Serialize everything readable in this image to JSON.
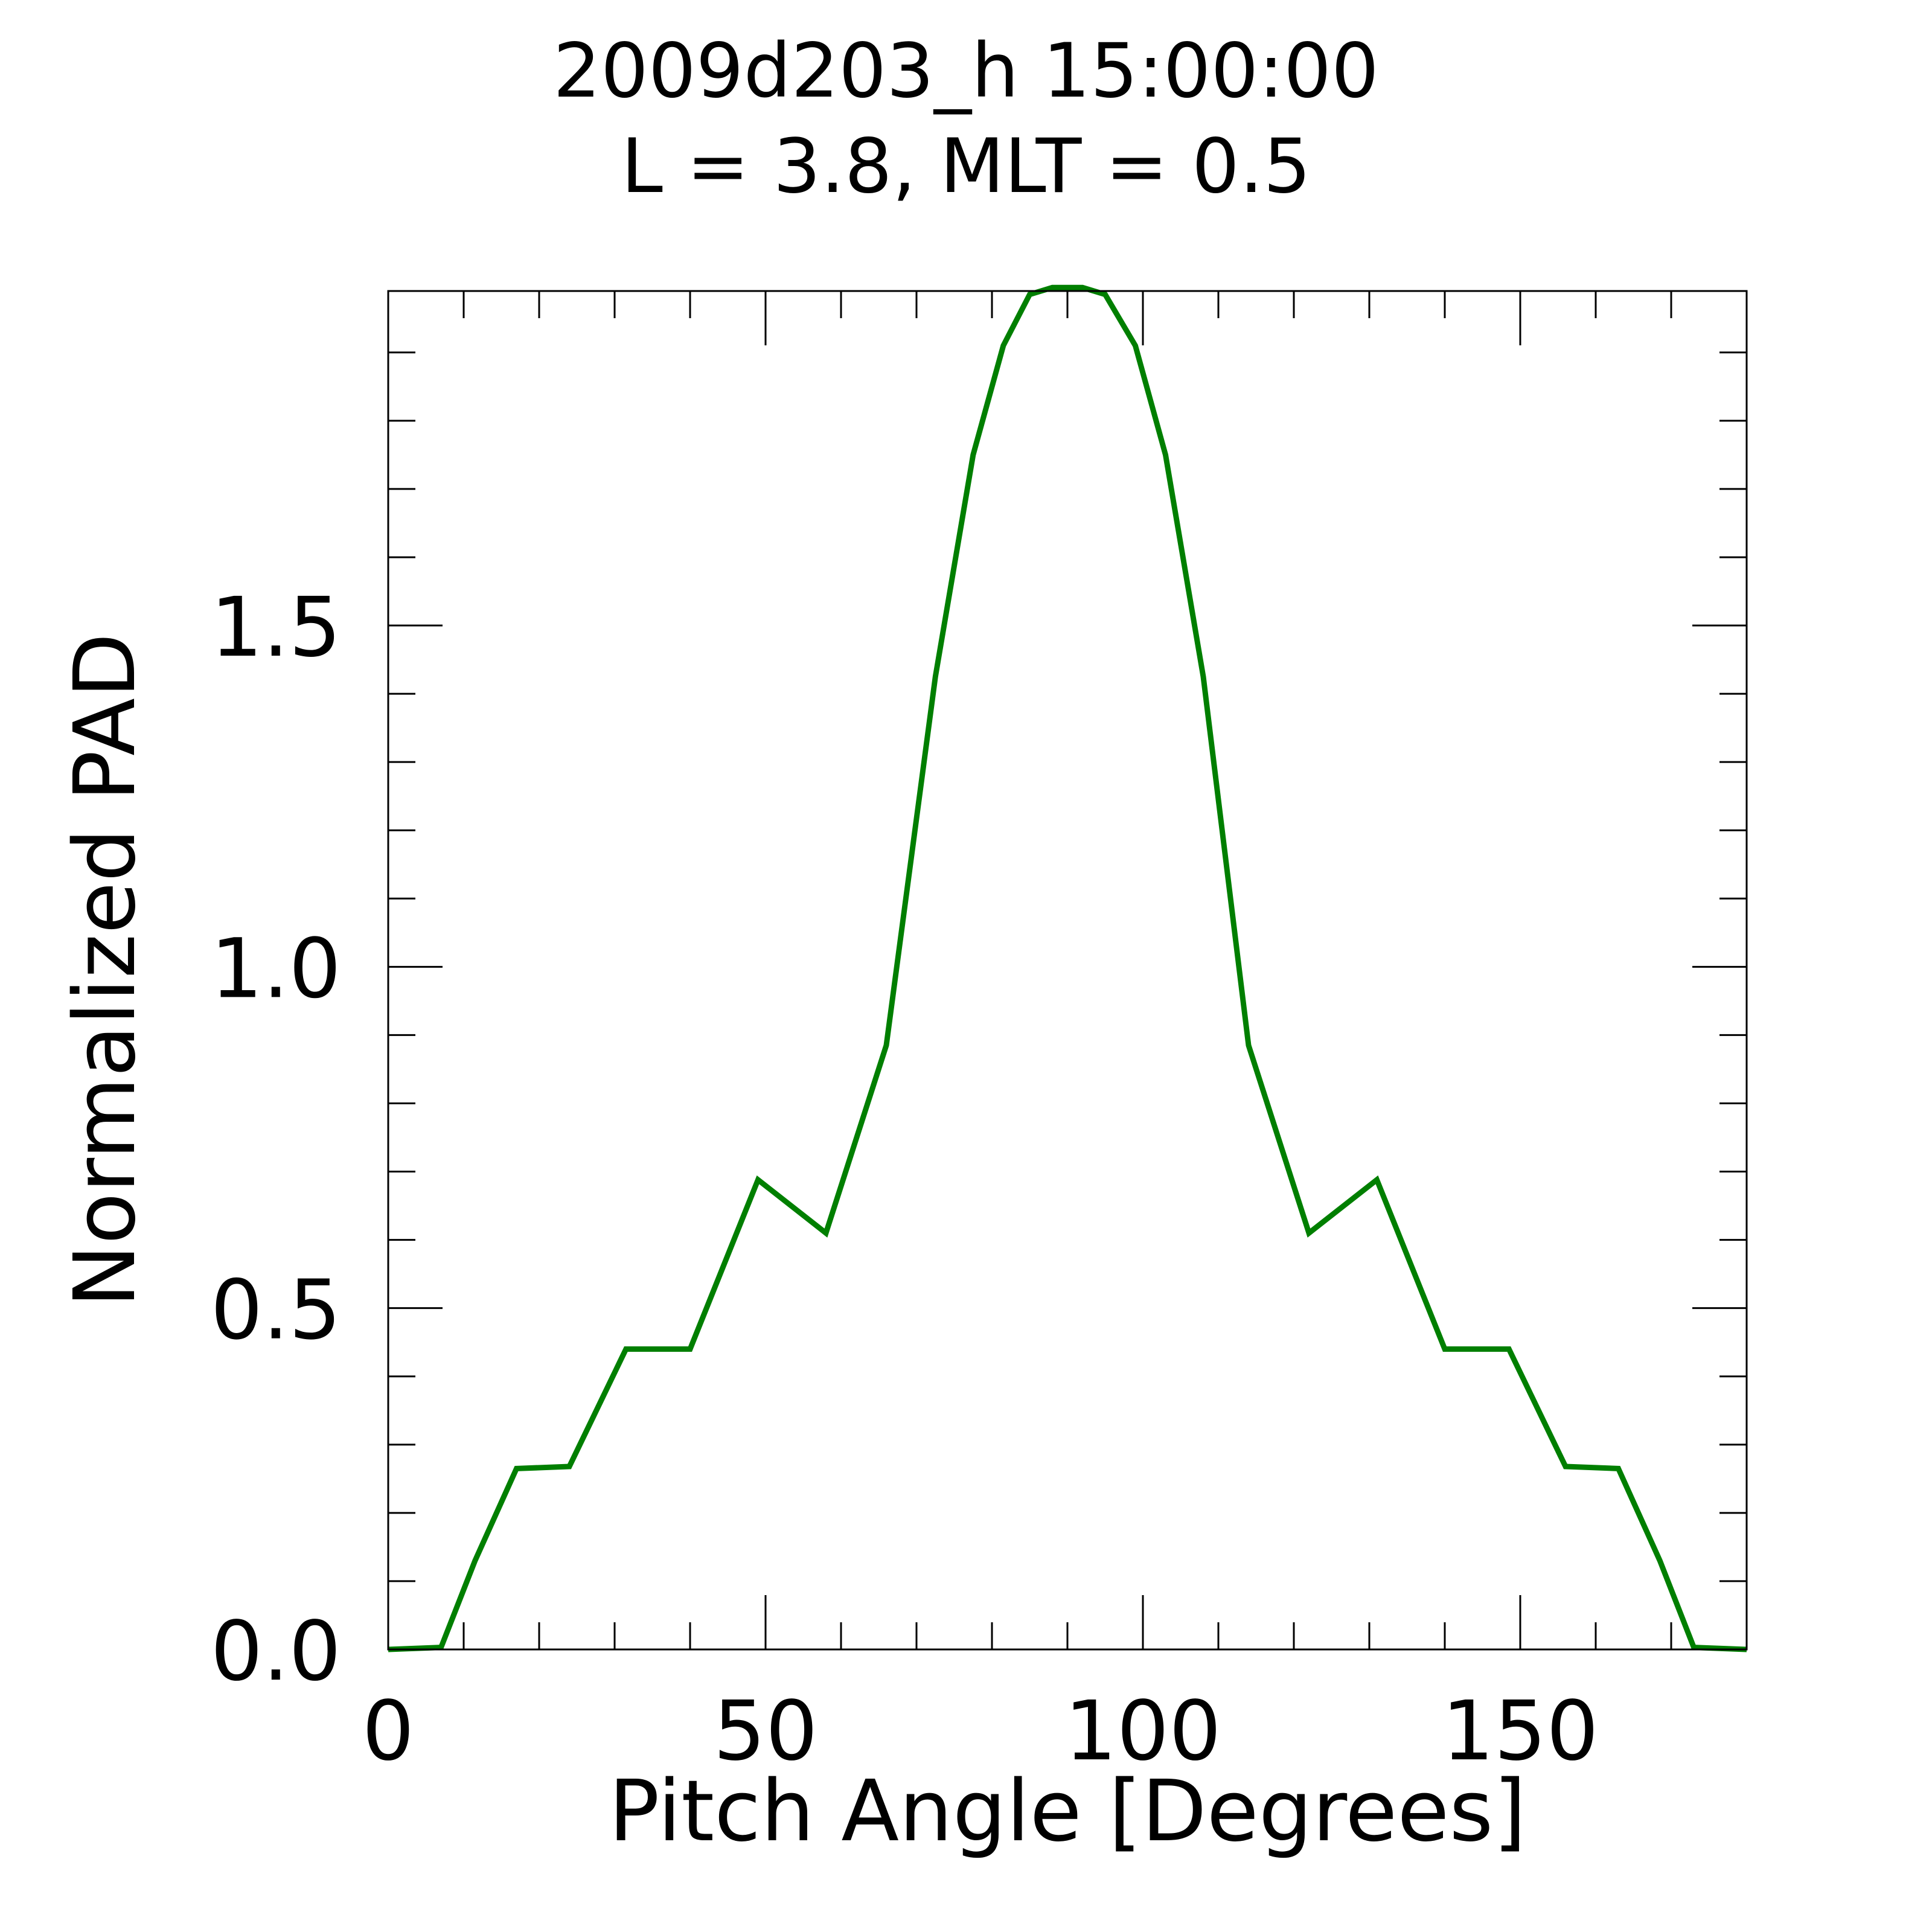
{
  "chart_data": {
    "type": "line",
    "title": "2009d203_h  15:00:00",
    "subtitle": "L = 3.8, MLT =  0.5",
    "xlabel": "Pitch Angle [Degrees]",
    "ylabel": "Normalized PAD",
    "xlim": [
      0,
      180
    ],
    "ylim": [
      0,
      1.99
    ],
    "x_major_ticks": [
      0,
      50,
      100,
      150
    ],
    "x_tick_labels": [
      "0",
      "50",
      "100",
      "150"
    ],
    "x_minor_step": 10,
    "y_major_ticks": [
      0,
      0.5,
      1.0,
      1.5
    ],
    "y_tick_labels": [
      "0.0",
      "0.5",
      "1.0",
      "1.5"
    ],
    "y_minor_step": 0.1,
    "grid": false,
    "series": [
      {
        "color": "#007f00",
        "x": [
          0,
          7,
          11.5,
          17,
          24,
          31.5,
          40,
          49,
          58,
          66,
          72.5,
          77.5,
          81.5,
          85,
          88,
          92,
          95,
          99,
          103,
          108,
          114,
          122,
          131,
          140,
          148.5,
          156,
          163,
          168.5,
          173,
          180
        ],
        "y": [
          0,
          0.003,
          0.13,
          0.265,
          0.268,
          0.44,
          0.44,
          0.688,
          0.61,
          0.885,
          1.425,
          1.75,
          1.91,
          1.985,
          1.995,
          1.995,
          1.985,
          1.91,
          1.75,
          1.425,
          0.885,
          0.61,
          0.688,
          0.44,
          0.44,
          0.268,
          0.265,
          0.13,
          0.003,
          0
        ]
      }
    ]
  }
}
